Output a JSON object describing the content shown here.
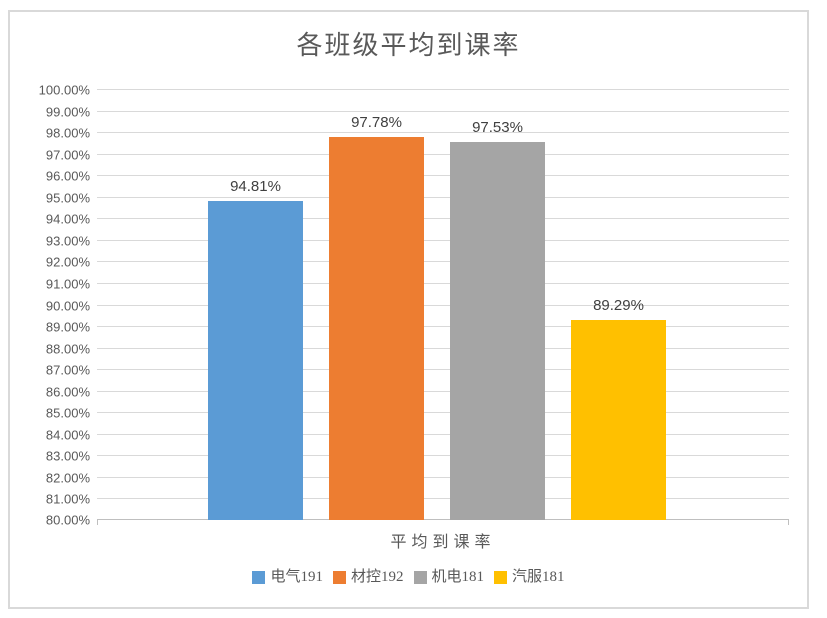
{
  "chart_data": {
    "type": "bar",
    "title": "各班级平均到课率",
    "categories": [
      "平均到课率"
    ],
    "series": [
      {
        "name": "电气191",
        "values": [
          94.81
        ],
        "data_label": "94.81%",
        "color": "#5B9BD5"
      },
      {
        "name": "材控192",
        "values": [
          97.78
        ],
        "data_label": "97.78%",
        "color": "#ED7D31"
      },
      {
        "name": "机电181",
        "values": [
          97.53
        ],
        "data_label": "97.53%",
        "color": "#A5A5A5"
      },
      {
        "name": "汽服181",
        "values": [
          89.29
        ],
        "data_label": "89.29%",
        "color": "#FFC000"
      }
    ],
    "ylim": [
      80,
      100
    ],
    "ytick_step": 1,
    "ytick_labels": [
      "100.00%",
      "99.00%",
      "98.00%",
      "97.00%",
      "96.00%",
      "95.00%",
      "94.00%",
      "93.00%",
      "92.00%",
      "91.00%",
      "90.00%",
      "89.00%",
      "88.00%",
      "87.00%",
      "86.00%",
      "85.00%",
      "84.00%",
      "83.00%",
      "82.00%",
      "81.00%",
      "80.00%"
    ],
    "grid": true,
    "legend_position": "bottom",
    "data_labels_shown": true
  },
  "colors": {
    "gridline": "#D9D9D9",
    "axis_line": "#BFBFBF",
    "frame_border": "#D9D9D9",
    "title_text": "#595959",
    "axis_text": "#595959",
    "data_label_text": "#404040",
    "background": "#FFFFFF"
  }
}
